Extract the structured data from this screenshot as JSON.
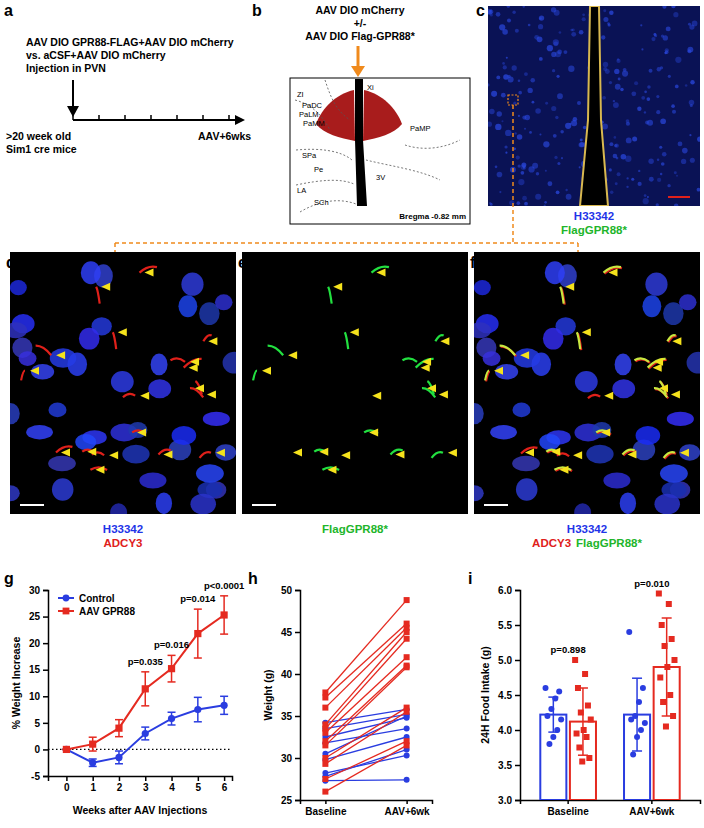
{
  "panels": {
    "a": {
      "label": "a",
      "lines": [
        "AAV DIO GPR88-FLAG+AAV DIO mCherry",
        "vs. aCSF+AAV DIO mCherry",
        "Injection in PVN"
      ],
      "left_caption": [
        ">20 week old",
        "Sim1 cre mice"
      ],
      "right_caption": "AAV+6wks"
    },
    "b": {
      "label": "b",
      "lines": [
        "AAV DIO mCherry",
        "+/-",
        "AAV DIO Flag-GPR88*"
      ],
      "atlas_labels": [
        "ZI",
        "Xi",
        "PaDC",
        "PaLM",
        "PaMM",
        "PaMP",
        "SPa",
        "Pe",
        "3V",
        "LA",
        "SCh"
      ],
      "bregma": "Bregma -0.82 mm"
    },
    "c": {
      "label": "c",
      "stain_lines": [
        [
          {
            "text": "H33342",
            "color": "#1f35e8"
          }
        ],
        [
          {
            "text": "FlagGPR88*",
            "color": "#21b52a"
          }
        ]
      ]
    },
    "d": {
      "label": "d",
      "stain_lines": [
        [
          {
            "text": "H33342",
            "color": "#1f35e8"
          }
        ],
        [
          {
            "text": "ADCY3",
            "color": "#e0201a"
          }
        ]
      ]
    },
    "e": {
      "label": "e",
      "stain_lines": [
        [
          {
            "text": "FlagGPR88*",
            "color": "#21b52a"
          }
        ]
      ]
    },
    "f": {
      "label": "f",
      "stain_lines": [
        [
          {
            "text": "H33342",
            "color": "#1f35e8"
          }
        ],
        [
          {
            "text": "ADCY3",
            "color": "#e0201a"
          },
          {
            "text": "FlagGPR88*",
            "color": "#21b52a"
          }
        ]
      ]
    }
  },
  "chart_data": [
    {
      "panel": "g",
      "type": "line",
      "x": [
        0,
        1,
        2,
        3,
        4,
        5,
        6
      ],
      "xlim": [
        -0.7,
        6.3
      ],
      "xticks": [
        0,
        1,
        2,
        3,
        4,
        5,
        6
      ],
      "ylim": [
        -5,
        30
      ],
      "yticks": [
        -5,
        0,
        5,
        10,
        15,
        20,
        25,
        30
      ],
      "x_label": "Weeks after AAV Injections",
      "y_label": "% Weight Increase",
      "legend": "upper left",
      "hline": 0,
      "series": [
        {
          "name": "Control",
          "color": "#2a3de0",
          "marker": "circle",
          "values": [
            0,
            -2.5,
            -1.5,
            3,
            5.8,
            7.5,
            8.3
          ],
          "errors": [
            0,
            0.7,
            1.2,
            1.2,
            1.2,
            2.3,
            1.7
          ]
        },
        {
          "name": "AAV GPR88",
          "color": "#e52a20",
          "marker": "square",
          "values": [
            0,
            1,
            4,
            11.4,
            15.2,
            21.8,
            25.3
          ],
          "errors": [
            0,
            1.3,
            1.6,
            3.2,
            2.5,
            4.6,
            3.6
          ]
        }
      ],
      "annotations": [
        {
          "x": 3,
          "text": "p=0.035"
        },
        {
          "x": 4,
          "text": "p=0.016"
        },
        {
          "x": 5,
          "text": "p=0.014"
        },
        {
          "x": 6,
          "text": "p<0.0001"
        }
      ]
    },
    {
      "panel": "h",
      "type": "line",
      "categories": [
        "Baseline",
        "AAV+6wk"
      ],
      "ylim": [
        25,
        50
      ],
      "yticks": [
        25,
        30,
        35,
        40,
        45,
        50
      ],
      "y_label": "Weight (g)",
      "series": [
        {
          "color": "#2a3de0",
          "marker": "circle",
          "values": [
            34.2,
            35.8
          ]
        },
        {
          "color": "#2a3de0",
          "marker": "circle",
          "values": [
            33.5,
            35.2
          ]
        },
        {
          "color": "#2a3de0",
          "marker": "circle",
          "values": [
            32.5,
            34.8
          ]
        },
        {
          "color": "#2a3de0",
          "marker": "circle",
          "values": [
            31.8,
            33.5
          ]
        },
        {
          "color": "#2a3de0",
          "marker": "circle",
          "values": [
            30.5,
            35
          ]
        },
        {
          "color": "#2a3de0",
          "marker": "circle",
          "values": [
            29.8,
            32.5
          ]
        },
        {
          "color": "#2a3de0",
          "marker": "circle",
          "values": [
            28.2,
            30.3
          ]
        },
        {
          "color": "#2a3de0",
          "marker": "circle",
          "values": [
            27.8,
            31
          ]
        },
        {
          "color": "#2a3de0",
          "marker": "circle",
          "values": [
            27.3,
            27.4
          ]
        },
        {
          "color": "#e52a20",
          "marker": "square",
          "values": [
            37.8,
            48.8
          ]
        },
        {
          "color": "#e52a20",
          "marker": "square",
          "values": [
            37.2,
            46
          ]
        },
        {
          "color": "#e52a20",
          "marker": "square",
          "values": [
            36,
            45.5
          ]
        },
        {
          "color": "#e52a20",
          "marker": "square",
          "values": [
            34,
            45
          ]
        },
        {
          "color": "#e52a20",
          "marker": "square",
          "values": [
            33.5,
            44.2
          ]
        },
        {
          "color": "#e52a20",
          "marker": "square",
          "values": [
            33,
            42
          ]
        },
        {
          "color": "#e52a20",
          "marker": "square",
          "values": [
            32,
            41
          ]
        },
        {
          "color": "#e52a20",
          "marker": "square",
          "values": [
            31.5,
            40.8
          ]
        },
        {
          "color": "#e52a20",
          "marker": "square",
          "values": [
            30,
            36
          ]
        },
        {
          "color": "#e52a20",
          "marker": "square",
          "values": [
            29.3,
            35.5
          ]
        },
        {
          "color": "#e52a20",
          "marker": "square",
          "values": [
            27.5,
            32
          ]
        },
        {
          "color": "#e52a20",
          "marker": "square",
          "values": [
            26,
            31.5
          ]
        }
      ]
    },
    {
      "panel": "i",
      "type": "bar",
      "categories": [
        "Baseline",
        "AAV+6wk"
      ],
      "ylim": [
        3,
        6
      ],
      "yticks": [
        {
          "value": 3,
          "label": "3.0"
        },
        {
          "value": 3.5,
          "label": "3.5"
        },
        {
          "value": 4,
          "label": "4.0"
        },
        {
          "value": 4.5,
          "label": "4.5"
        },
        {
          "value": 5,
          "label": "5.0"
        },
        {
          "value": 5.5,
          "label": "5.5"
        },
        {
          "value": 6,
          "label": "6.0"
        }
      ],
      "y_label": "24H Food Intake (g)",
      "series": [
        {
          "color": "#2a3de0",
          "marker": "circle",
          "values": [
            4.22,
            4.22
          ],
          "errors": [
            0.25,
            0.52
          ],
          "points": [
            [
              4.6,
              4.55,
              4.45,
              4.3,
              4.2,
              4.15,
              4.0,
              3.9,
              3.8
            ],
            [
              5.4,
              4.6,
              4.4,
              4.2,
              4.15,
              4.1,
              4.0,
              3.9,
              3.65
            ]
          ]
        },
        {
          "color": "#e52a20",
          "marker": "square",
          "values": [
            4.12,
            4.9
          ],
          "errors": [
            0.48,
            0.7
          ],
          "points": [
            [
              5.0,
              4.8,
              4.6,
              4.35,
              4.25,
              4.15,
              4.0,
              3.95,
              3.9,
              3.75,
              3.6,
              3.55
            ],
            [
              5.95,
              5.8,
              5.5,
              5.3,
              5.2,
              5.0,
              4.9,
              4.75,
              4.5,
              4.4,
              4.2,
              4.05
            ]
          ]
        }
      ],
      "annotations": [
        {
          "category": "Baseline",
          "text": "p=0.898"
        },
        {
          "category": "AAV+6wk",
          "text": "p=0.010"
        }
      ]
    }
  ]
}
